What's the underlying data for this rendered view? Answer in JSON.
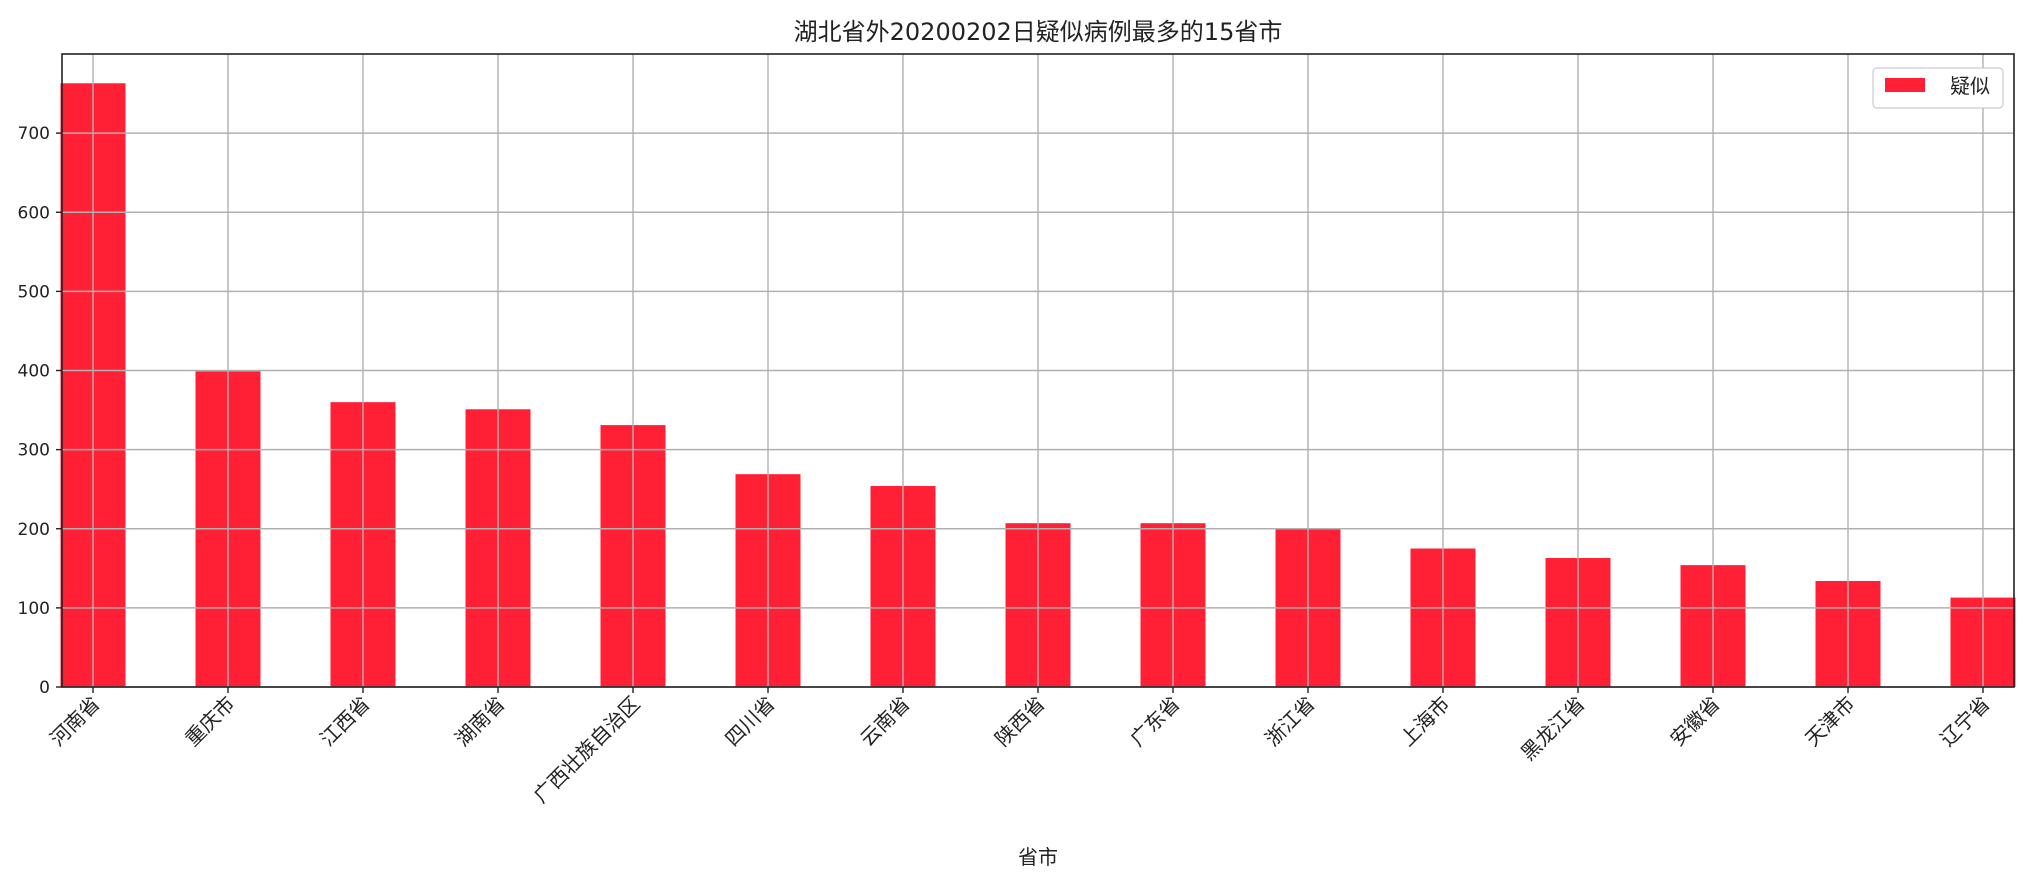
{
  "chart_data": {
    "type": "bar",
    "title": "湖北省外20200202日疑似病例最多的15省市",
    "xlabel": "省市",
    "ylabel": "",
    "categories": [
      "河南省",
      "重庆市",
      "江西省",
      "湖南省",
      "广西壮族自治区",
      "四川省",
      "云南省",
      "陕西省",
      "广东省",
      "浙江省",
      "上海市",
      "黑龙江省",
      "安徽省",
      "天津市",
      "辽宁省"
    ],
    "series": [
      {
        "name": "疑似",
        "values": [
          763,
          399,
          360,
          351,
          331,
          269,
          254,
          207,
          207,
          200,
          175,
          163,
          154,
          134,
          113
        ],
        "color": "#ff2035"
      }
    ],
    "ylim": [
      0,
      800
    ],
    "yticks": [
      0,
      100,
      200,
      300,
      400,
      500,
      600,
      700
    ],
    "grid": true,
    "legend_position": "top-right"
  }
}
